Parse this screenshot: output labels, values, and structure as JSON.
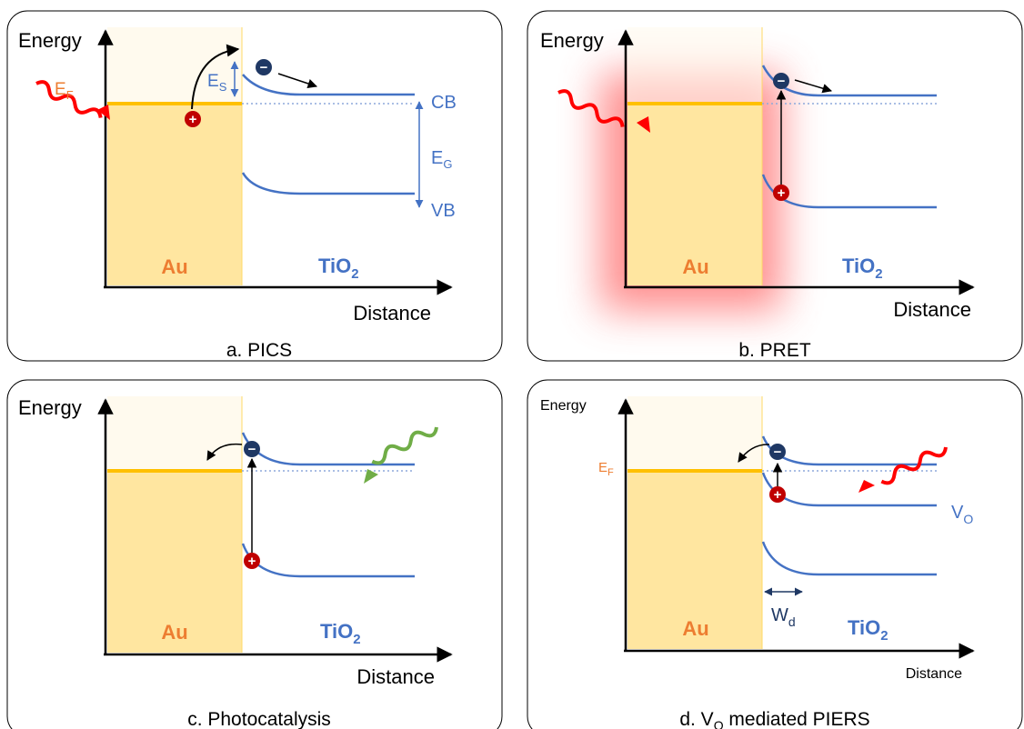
{
  "panels": {
    "a": {
      "energy_label": "Energy",
      "distance_label": "Distance",
      "metal_label": "Au",
      "semiconductor_label": "TiO",
      "semiconductor_sub": "2",
      "ef_label": "E",
      "ef_sub": "F",
      "es_label": "E",
      "es_sub": "S",
      "eg_label": "E",
      "eg_sub": "G",
      "cb_label": "CB",
      "vb_label": "VB",
      "caption": "a. PICS"
    },
    "b": {
      "energy_label": "Energy",
      "distance_label": "Distance",
      "metal_label": "Au",
      "semiconductor_label": "TiO",
      "semiconductor_sub": "2",
      "caption": "b. PRET"
    },
    "c": {
      "energy_label": "Energy",
      "distance_label": "Distance",
      "metal_label": "Au",
      "semiconductor_label": "TiO",
      "semiconductor_sub": "2",
      "caption": "c. Photocatalysis"
    },
    "d": {
      "energy_label": "Energy",
      "distance_label": "Distance",
      "metal_label": "Au",
      "semiconductor_label": "TiO",
      "semiconductor_sub": "2",
      "ef_label": "E",
      "ef_sub": "F",
      "vo_label": "V",
      "vo_sub": "O",
      "wd_label": "W",
      "wd_sub": "d",
      "caption_prefix": "d. V",
      "caption_sub": "O",
      "caption_suffix": " mediated PIERS"
    }
  },
  "symbols": {
    "electron": "−",
    "hole": "+"
  },
  "colors": {
    "band": "#4472c4",
    "fermi": "#ffc000",
    "metal_fill": "#ffe6a0",
    "metal_fill_light": "#fffaee",
    "metal_label": "#ed7d31",
    "light_red": "#ff0000",
    "light_green": "#70ad47",
    "electron": "#1f3864",
    "hole": "#c00000"
  }
}
